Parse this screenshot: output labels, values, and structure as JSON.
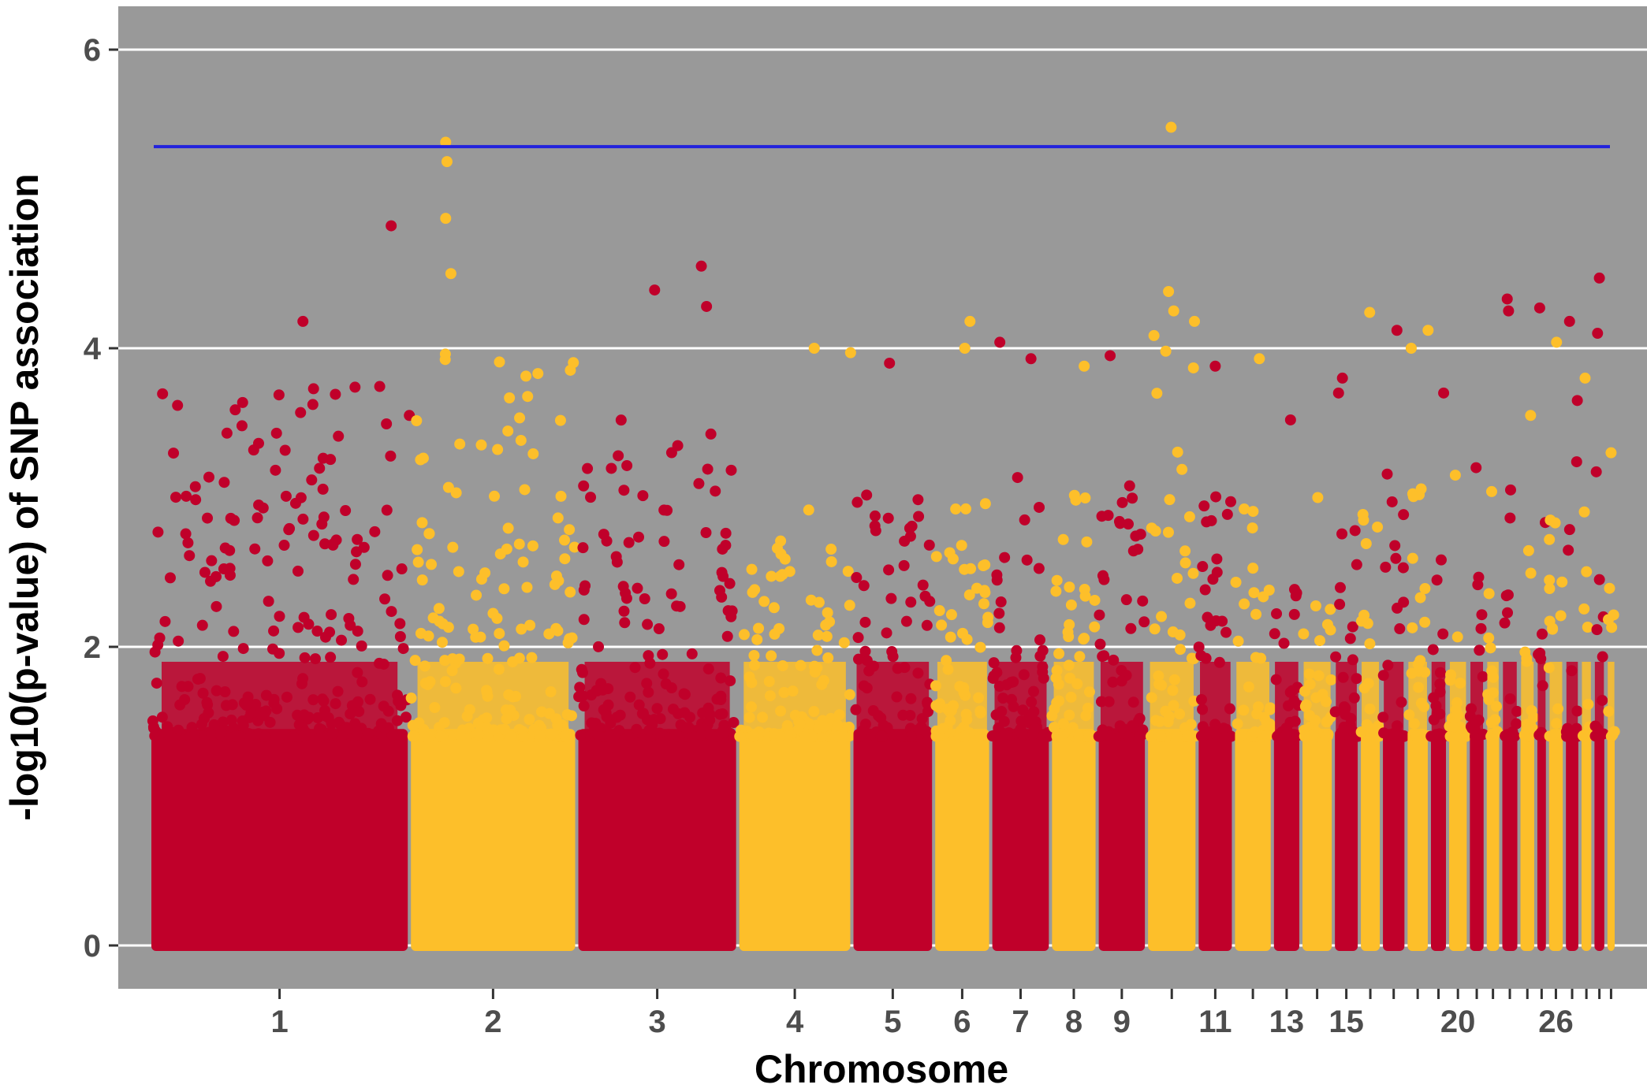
{
  "chart_data": {
    "type": "scatter",
    "subtype": "manhattan",
    "title": "",
    "xlabel": "Chromosome",
    "ylabel": "-log10(p-value) of SNP association",
    "ylim": [
      -0.3,
      6.3
    ],
    "yticks": [
      0,
      2,
      4,
      6
    ],
    "grid": "horizontal",
    "legend": "none",
    "threshold_line": {
      "value": 5.35,
      "color": "#2222dd"
    },
    "colors": {
      "panel": "#999999",
      "gridline": "#ffffff",
      "odd_chromosome": "#c0002a",
      "even_chromosome": "#fdbf2a"
    },
    "chromosomes": [
      {
        "chr": "1",
        "label": "1",
        "start": 0,
        "end": 1000,
        "peak": 4.82,
        "top_points": [
          [
            930,
            4.82
          ],
          [
            590,
            4.18
          ],
          [
            1000,
            3.55
          ]
        ]
      },
      {
        "chr": "2",
        "label": "2",
        "start": 1000,
        "end": 1645,
        "peak": 5.38,
        "top_points": [
          [
            1140,
            5.38
          ],
          [
            1145,
            5.25
          ],
          [
            1140,
            4.87
          ],
          [
            1160,
            4.5
          ]
        ]
      },
      {
        "chr": "3",
        "label": "3",
        "start": 1645,
        "end": 2265,
        "peak": 4.55,
        "top_points": [
          [
            2125,
            4.55
          ],
          [
            1945,
            4.39
          ],
          [
            2145,
            4.28
          ]
        ]
      },
      {
        "chr": "4",
        "label": "4",
        "start": 2265,
        "end": 2705,
        "peak": 4.0,
        "top_points": [
          [
            2560,
            4.0
          ],
          [
            2700,
            3.97
          ]
        ]
      },
      {
        "chr": "5",
        "label": "5",
        "start": 2705,
        "end": 3020,
        "peak": 3.9,
        "top_points": [
          [
            2850,
            3.9
          ]
        ]
      },
      {
        "chr": "6",
        "label": "6",
        "start": 3020,
        "end": 3240,
        "peak": 4.18,
        "top_points": [
          [
            3160,
            4.18
          ],
          [
            3140,
            4.0
          ]
        ]
      },
      {
        "chr": "7",
        "label": "7",
        "start": 3240,
        "end": 3470,
        "peak": 4.04,
        "top_points": [
          [
            3275,
            4.04
          ],
          [
            3395,
            3.93
          ]
        ]
      },
      {
        "chr": "8",
        "label": "8",
        "start": 3470,
        "end": 3650,
        "peak": 3.88,
        "top_points": [
          [
            3600,
            3.88
          ]
        ]
      },
      {
        "chr": "9",
        "label": "9",
        "start": 3650,
        "end": 3840,
        "peak": 3.95,
        "top_points": [
          [
            3700,
            3.95
          ]
        ]
      },
      {
        "chr": "10",
        "label": "",
        "start": 3840,
        "end": 4035,
        "peak": 5.48,
        "top_points": [
          [
            3935,
            5.48
          ],
          [
            3925,
            4.38
          ],
          [
            3945,
            4.25
          ],
          [
            4025,
            4.18
          ]
        ]
      },
      {
        "chr": "11",
        "label": "11",
        "start": 4035,
        "end": 4175,
        "peak": 3.88,
        "top_points": [
          [
            4105,
            3.88
          ]
        ]
      },
      {
        "chr": "12",
        "label": "",
        "start": 4175,
        "end": 4325,
        "peak": 3.93,
        "top_points": [
          [
            4275,
            3.93
          ]
        ]
      },
      {
        "chr": "13",
        "label": "13",
        "start": 4325,
        "end": 4435,
        "peak": 3.52,
        "top_points": [
          [
            4395,
            3.52
          ]
        ]
      },
      {
        "chr": "14",
        "label": "",
        "start": 4435,
        "end": 4560,
        "peak": 3.0,
        "top_points": [
          [
            4500,
            3.0
          ]
        ]
      },
      {
        "chr": "15",
        "label": "15",
        "start": 4560,
        "end": 4660,
        "peak": 3.8,
        "top_points": [
          [
            4595,
            3.8
          ],
          [
            4580,
            3.7
          ]
        ]
      },
      {
        "chr": "16",
        "label": "",
        "start": 4660,
        "end": 4745,
        "peak": 4.24,
        "top_points": [
          [
            4700,
            4.24
          ]
        ]
      },
      {
        "chr": "17",
        "label": "",
        "start": 4745,
        "end": 4840,
        "peak": 4.12,
        "top_points": [
          [
            4805,
            4.12
          ]
        ]
      },
      {
        "chr": "18",
        "label": "",
        "start": 4840,
        "end": 4930,
        "peak": 4.12,
        "top_points": [
          [
            4925,
            4.12
          ],
          [
            4860,
            4.0
          ]
        ]
      },
      {
        "chr": "19",
        "label": "",
        "start": 4930,
        "end": 5000,
        "peak": 3.7,
        "top_points": [
          [
            4985,
            3.7
          ]
        ]
      },
      {
        "chr": "20",
        "label": "20",
        "start": 5000,
        "end": 5080,
        "peak": 3.15,
        "top_points": [
          [
            5030,
            3.15
          ]
        ]
      },
      {
        "chr": "21",
        "label": "",
        "start": 5080,
        "end": 5145,
        "peak": 3.2,
        "top_points": [
          [
            5110,
            3.2
          ]
        ]
      },
      {
        "chr": "22",
        "label": "",
        "start": 5145,
        "end": 5205,
        "peak": 3.04,
        "top_points": [
          [
            5170,
            3.04
          ]
        ]
      },
      {
        "chr": "23",
        "label": "",
        "start": 5205,
        "end": 5275,
        "peak": 4.33,
        "top_points": [
          [
            5230,
            4.33
          ],
          [
            5235,
            4.25
          ]
        ]
      },
      {
        "chr": "24",
        "label": "",
        "start": 5275,
        "end": 5340,
        "peak": 3.55,
        "top_points": [
          [
            5320,
            3.55
          ]
        ]
      },
      {
        "chr": "25",
        "label": "",
        "start": 5340,
        "end": 5385,
        "peak": 4.27,
        "top_points": [
          [
            5355,
            4.27
          ]
        ]
      },
      {
        "chr": "26",
        "label": "26",
        "start": 5385,
        "end": 5450,
        "peak": 4.04,
        "top_points": [
          [
            5420,
            4.04
          ]
        ]
      },
      {
        "chr": "27",
        "label": "",
        "start": 5450,
        "end": 5510,
        "peak": 4.18,
        "top_points": [
          [
            5470,
            4.18
          ],
          [
            5500,
            3.65
          ]
        ]
      },
      {
        "chr": "28",
        "label": "",
        "start": 5510,
        "end": 5560,
        "peak": 3.8,
        "top_points": [
          [
            5530,
            3.8
          ]
        ]
      },
      {
        "chr": "29",
        "label": "",
        "start": 5560,
        "end": 5610,
        "peak": 4.47,
        "top_points": [
          [
            5585,
            4.47
          ],
          [
            5578,
            4.1
          ]
        ]
      },
      {
        "chr": "30",
        "label": "",
        "start": 5610,
        "end": 5650,
        "peak": 3.3,
        "top_points": [
          [
            5630,
            3.3
          ]
        ]
      }
    ]
  }
}
